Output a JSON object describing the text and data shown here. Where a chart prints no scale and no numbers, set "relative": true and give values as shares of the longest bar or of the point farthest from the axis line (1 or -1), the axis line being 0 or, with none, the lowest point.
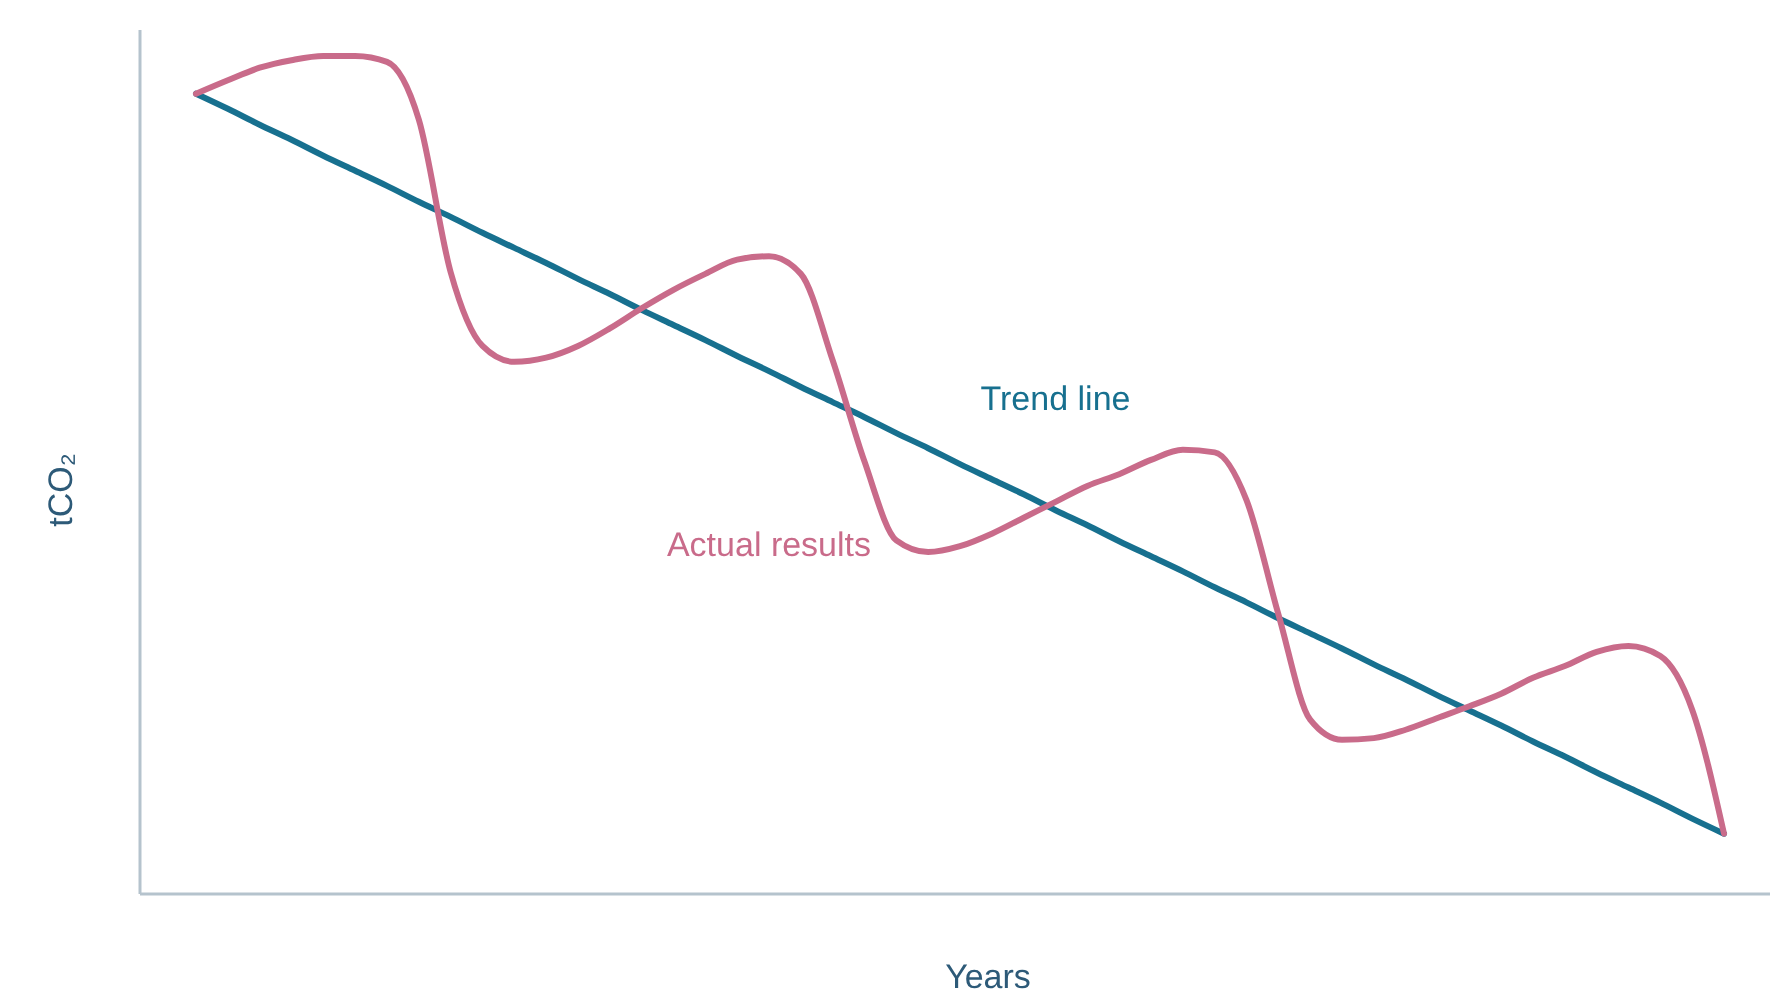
{
  "chart_data": {
    "type": "line",
    "relative": true,
    "xlabel": "Years",
    "ylabel": "tCO₂",
    "legend": false,
    "marker": "none",
    "categories": [
      null,
      null,
      null,
      null,
      null,
      null,
      null,
      null,
      null,
      null,
      null,
      null,
      null,
      null,
      null,
      null,
      null,
      null,
      null,
      null,
      null,
      null,
      null,
      null,
      null,
      null,
      null,
      null,
      null,
      null,
      null,
      null,
      null,
      null,
      null,
      null,
      null,
      null,
      null,
      null,
      null,
      null,
      null,
      null,
      null,
      null,
      null,
      null,
      null
    ],
    "series": [
      {
        "name": "Trend line",
        "color": "#17708f",
        "values": [
          0.955,
          0.937,
          0.918,
          0.9,
          0.881,
          0.863,
          0.845,
          0.826,
          0.808,
          0.789,
          0.771,
          0.753,
          0.734,
          0.716,
          0.697,
          0.679,
          0.661,
          0.642,
          0.624,
          0.605,
          0.587,
          0.569,
          0.55,
          0.532,
          0.513,
          0.495,
          0.477,
          0.458,
          0.44,
          0.421,
          0.403,
          0.385,
          0.366,
          0.348,
          0.329,
          0.311,
          0.293,
          0.274,
          0.256,
          0.237,
          0.219,
          0.201,
          0.182,
          0.164,
          0.145,
          0.127,
          0.109,
          0.09,
          0.072
        ]
      },
      {
        "name": "Actual results",
        "color": "#c96b8a",
        "values": [
          0.955,
          0.971,
          0.986,
          0.995,
          1,
          1,
          0.993,
          0.924,
          0.742,
          0.654,
          0.635,
          0.64,
          0.654,
          0.675,
          0.699,
          0.721,
          0.74,
          0.757,
          0.761,
          0.74,
          0.637,
          0.516,
          0.422,
          0.408,
          0.415,
          0.43,
          0.449,
          0.468,
          0.487,
          0.501,
          0.518,
          0.53,
          0.527,
          0.47,
          0.334,
          0.208,
          0.184,
          0.186,
          0.196,
          0.21,
          0.224,
          0.239,
          0.258,
          0.272,
          0.289,
          0.296,
          0.284,
          0.22,
          0.072
        ]
      }
    ]
  }
}
